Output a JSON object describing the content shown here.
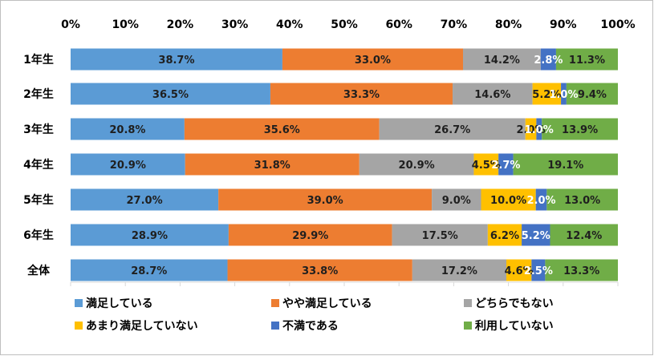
{
  "chart_data": {
    "type": "bar",
    "orientation": "horizontal",
    "stacked": "percent",
    "categories": [
      "1年生",
      "2年生",
      "3年生",
      "4年生",
      "5年生",
      "6年生",
      "全体"
    ],
    "x_ticks": [
      "0%",
      "10%",
      "20%",
      "30%",
      "40%",
      "50%",
      "60%",
      "70%",
      "80%",
      "90%",
      "100%"
    ],
    "xlim": [
      0,
      100
    ],
    "grid": false,
    "legend_position": "bottom",
    "series": [
      {
        "name": "満足している",
        "color": "#5b9bd5",
        "label_color": "#1f1f1f",
        "values": [
          38.7,
          36.5,
          20.8,
          20.9,
          27.0,
          28.9,
          28.7
        ],
        "labels": [
          "38.7%",
          "36.5%",
          "20.8%",
          "20.9%",
          "27.0%",
          "28.9%",
          "28.7%"
        ]
      },
      {
        "name": "やや満足している",
        "color": "#ed7d31",
        "label_color": "#1f1f1f",
        "values": [
          33.0,
          33.3,
          35.6,
          31.8,
          39.0,
          29.9,
          33.8
        ],
        "labels": [
          "33.0%",
          "33.3%",
          "35.6%",
          "31.8%",
          "39.0%",
          "29.9%",
          "33.8%"
        ]
      },
      {
        "name": "どちらでもない",
        "color": "#a5a5a5",
        "label_color": "#1f1f1f",
        "values": [
          14.2,
          14.6,
          26.7,
          20.9,
          9.0,
          17.5,
          17.2
        ],
        "labels": [
          "14.2%",
          "14.6%",
          "26.7%",
          "20.9%",
          "9.0%",
          "17.5%",
          "17.2%"
        ]
      },
      {
        "name": "あまり満足していない",
        "color": "#ffc000",
        "label_color": "#1f1f1f",
        "values": [
          0,
          5.2,
          2.0,
          4.5,
          10.0,
          6.2,
          4.6
        ],
        "labels": [
          "",
          "5.2%",
          "2.0%",
          "4.5%",
          "10.0%",
          "6.2%",
          "4.6%"
        ]
      },
      {
        "name": "不満である",
        "color": "#4472c4",
        "label_color": "#ffffff",
        "values": [
          2.8,
          1.0,
          1.0,
          2.7,
          2.0,
          5.2,
          2.5
        ],
        "labels": [
          "2.8%",
          "1.0%",
          "1.0%",
          "2.7%",
          "2.0%",
          "5.2%",
          "2.5%"
        ]
      },
      {
        "name": "利用していない",
        "color": "#70ad47",
        "label_color": "#1f1f1f",
        "values": [
          11.3,
          9.4,
          13.9,
          19.1,
          13.0,
          12.4,
          13.3
        ],
        "labels": [
          "11.3%",
          "9.4%",
          "13.9%",
          "19.1%",
          "13.0%",
          "12.4%",
          "13.3%"
        ]
      }
    ]
  }
}
